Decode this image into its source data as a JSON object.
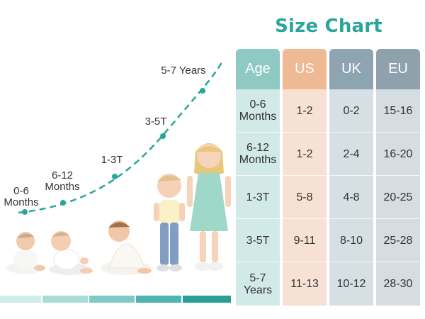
{
  "title": "Size Chart",
  "table": {
    "headers": [
      "Age",
      "US",
      "UK",
      "EU"
    ],
    "rows": [
      [
        "0-6\nMonths",
        "1-2",
        "0-2",
        "15-16"
      ],
      [
        "6-12\nMonths",
        "1-2",
        "2-4",
        "16-20"
      ],
      [
        "1-3T",
        "5-8",
        "4-8",
        "20-25"
      ],
      [
        "3-5T",
        "9-11",
        "8-10",
        "25-28"
      ],
      [
        "5-7\nYears",
        "11-13",
        "10-12",
        "28-30"
      ]
    ]
  },
  "growth": {
    "stages": [
      {
        "line1": "0-6",
        "line2": "Months"
      },
      {
        "line1": "6-12",
        "line2": "Months"
      },
      {
        "line1": "1-3T",
        "line2": ""
      },
      {
        "line1": "3-5T",
        "line2": ""
      },
      {
        "line1": "5-7 Years",
        "line2": ""
      }
    ]
  },
  "colors": {
    "accent": "#2aa59c",
    "age_header": "#8ec9c4",
    "us_header": "#efb994",
    "uk_header": "#8fa4b1",
    "eu_header": "#8fa1ad"
  },
  "floor_strip_colors": [
    "#cfeceb",
    "#a8dcd9",
    "#7ecbc6",
    "#4fb5ae",
    "#2a9f97"
  ]
}
